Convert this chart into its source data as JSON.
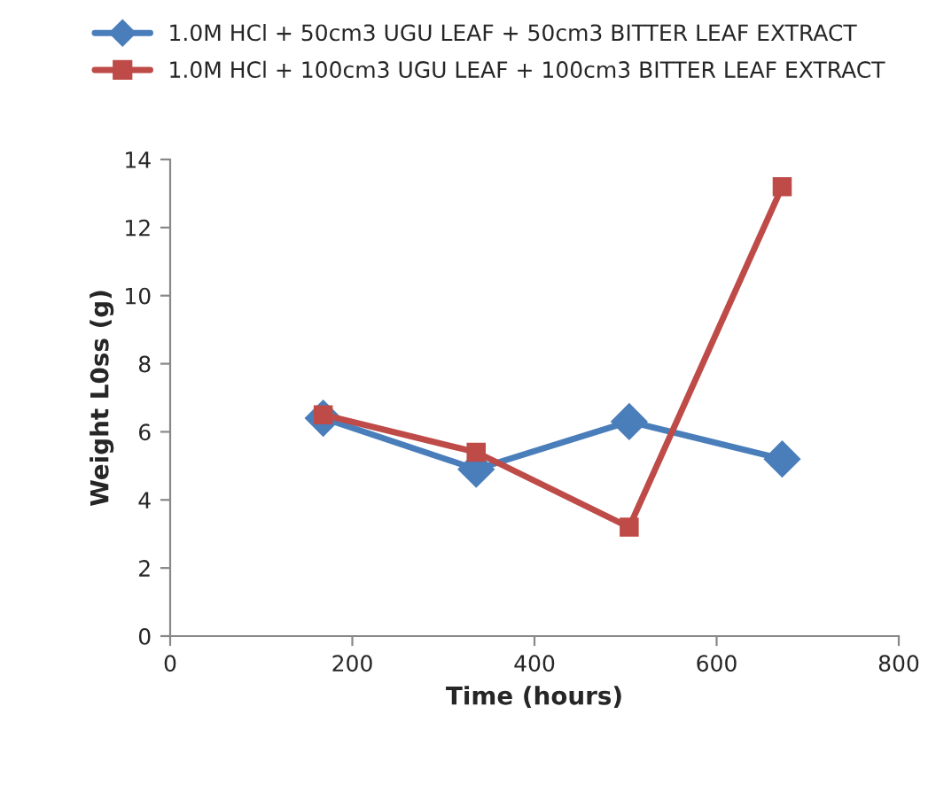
{
  "chart_data": {
    "type": "line",
    "xlabel": "Time (hours)",
    "ylabel": "Weight L0ss (g)",
    "xlim": [
      0,
      800
    ],
    "xticks": [
      0,
      200,
      400,
      600,
      800
    ],
    "ylim": [
      0,
      14
    ],
    "yticks": [
      0,
      2,
      4,
      6,
      8,
      10,
      12,
      14
    ],
    "x": [
      168,
      336,
      504,
      672
    ],
    "grid": false,
    "legend": "top",
    "series": [
      {
        "name": "1.0M HCl + 50cm3 UGU LEAF + 50cm3 BITTER LEAF EXTRACT",
        "color": "#4a7ebb",
        "marker": "diamond",
        "values": [
          6.4,
          4.9,
          6.3,
          5.2
        ]
      },
      {
        "name": "1.0M HCl + 100cm3 UGU LEAF + 100cm3 BITTER LEAF EXTRACT",
        "color": "#be4b48",
        "marker": "square",
        "values": [
          6.5,
          5.4,
          3.2,
          13.2
        ]
      }
    ]
  }
}
